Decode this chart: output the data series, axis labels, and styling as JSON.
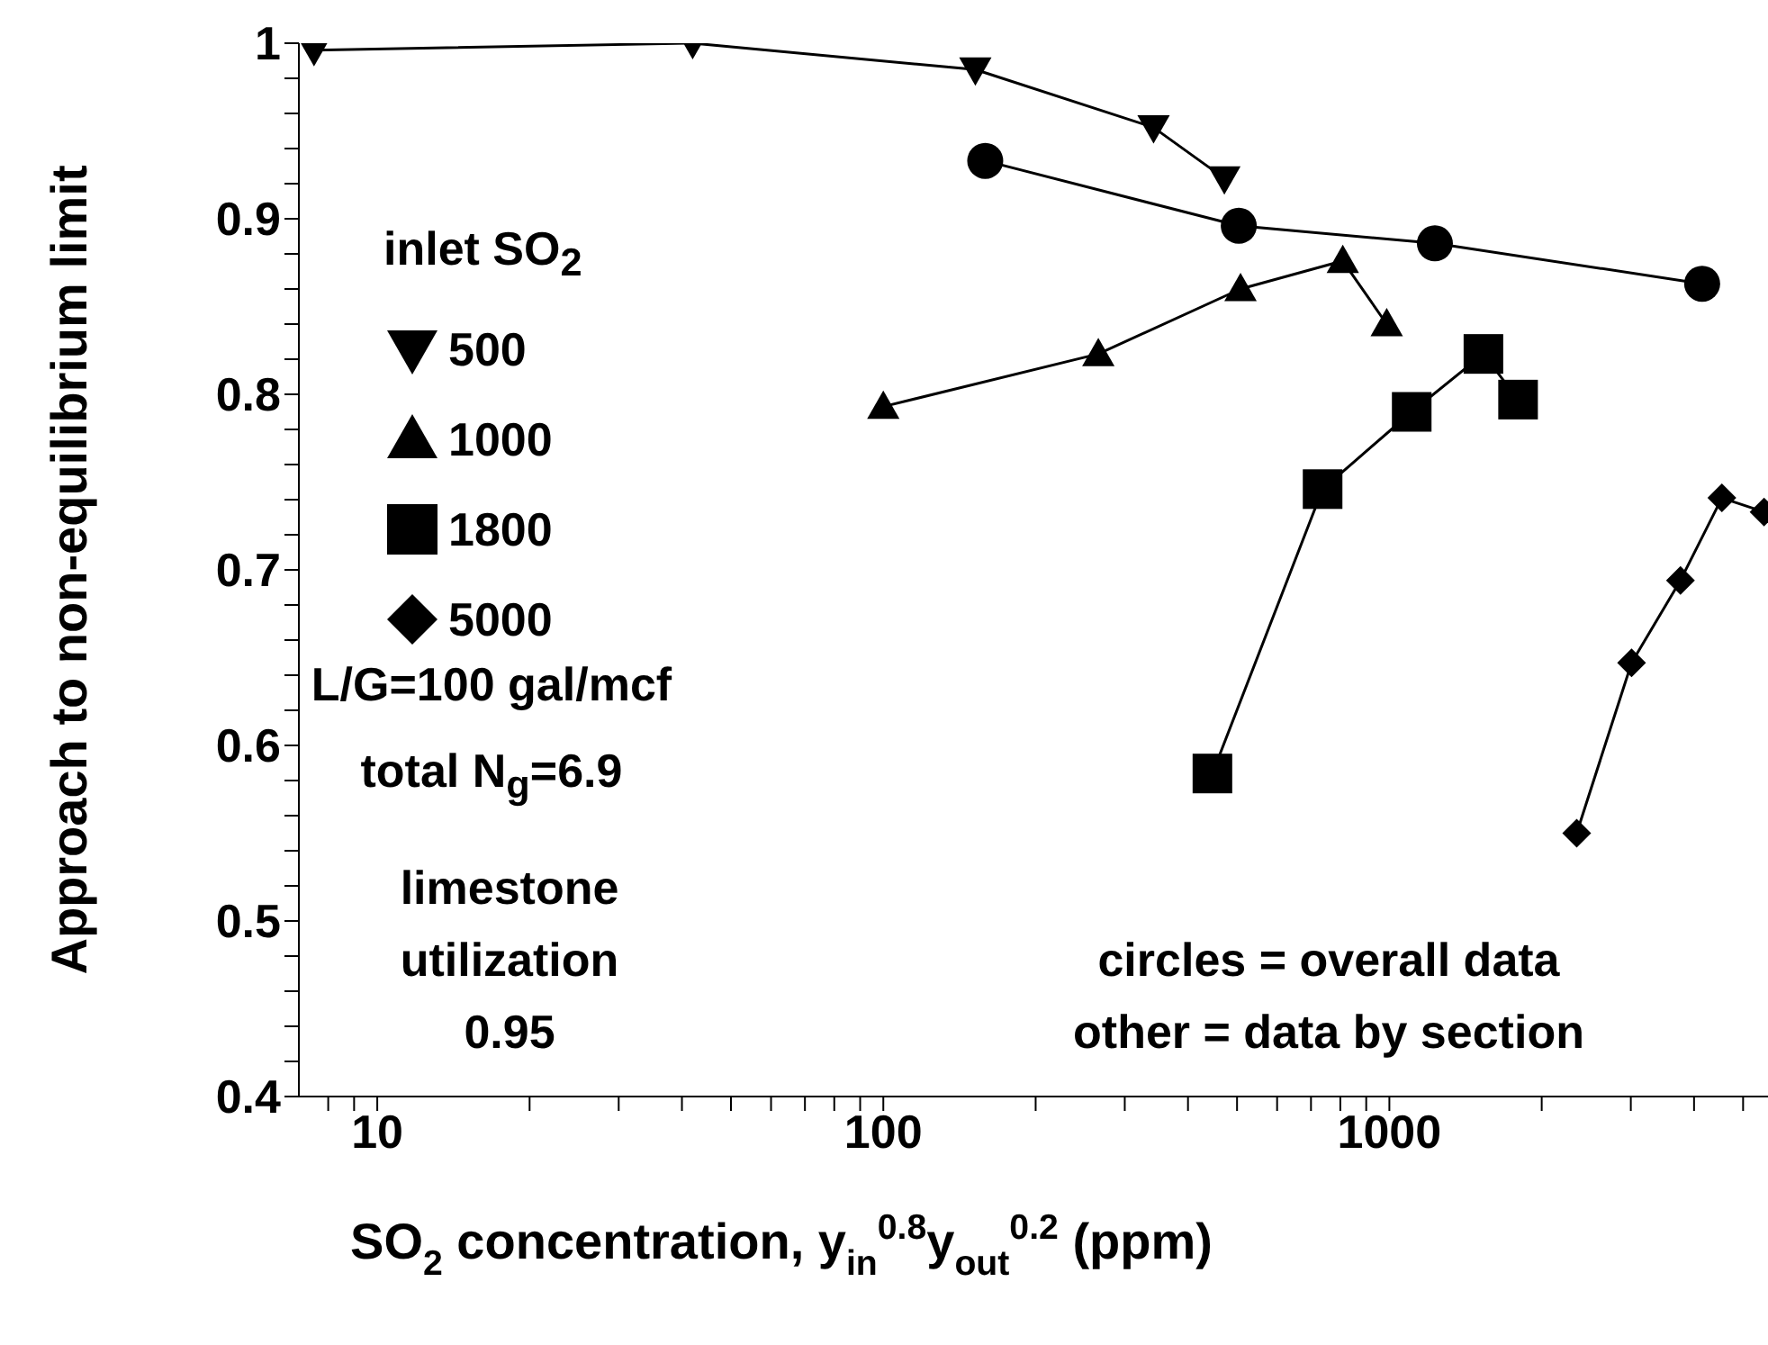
{
  "chart_data": {
    "type": "line",
    "xlabel": "SO$_{2}$ concentration, y$_{in}$$^{0.8}$y$_{out}$$^{0.2}$ (ppm)",
    "ylabel": "Approach to non-equilibrium limit",
    "legend_title": "inlet SO$_{2}$",
    "legend": "top left",
    "log": "x",
    "line_style": "solid",
    "xlim": [
      7,
      5600
    ],
    "ylim": [
      0.4,
      1
    ],
    "xticks": [
      {
        "value": 8,
        "label": null
      },
      {
        "value": 9,
        "label": null
      },
      10,
      {
        "value": 20,
        "label": null
      },
      {
        "value": 30,
        "label": null
      },
      {
        "value": 40,
        "label": null
      },
      {
        "value": 50,
        "label": null
      },
      {
        "value": 60,
        "label": null
      },
      {
        "value": 70,
        "label": null
      },
      {
        "value": 80,
        "label": null
      },
      {
        "value": 90,
        "label": null
      },
      100,
      {
        "value": 200,
        "label": null
      },
      {
        "value": 300,
        "label": null
      },
      {
        "value": 400,
        "label": null
      },
      {
        "value": 500,
        "label": null
      },
      {
        "value": 600,
        "label": null
      },
      {
        "value": 700,
        "label": null
      },
      {
        "value": 800,
        "label": null
      },
      {
        "value": 900,
        "label": null
      },
      1000,
      {
        "value": 2000,
        "label": null
      },
      {
        "value": 3000,
        "label": null
      },
      {
        "value": 4000,
        "label": null
      },
      {
        "value": 5000,
        "label": null
      }
    ],
    "yticks": [
      0.4,
      {
        "value": 0.42,
        "label": null
      },
      {
        "value": 0.44,
        "label": null
      },
      {
        "value": 0.46,
        "label": null
      },
      {
        "value": 0.48,
        "label": null
      },
      0.5,
      {
        "value": 0.52,
        "label": null
      },
      {
        "value": 0.54,
        "label": null
      },
      {
        "value": 0.56,
        "label": null
      },
      {
        "value": 0.58,
        "label": null
      },
      0.6,
      {
        "value": 0.62,
        "label": null
      },
      {
        "value": 0.64,
        "label": null
      },
      {
        "value": 0.66,
        "label": null
      },
      {
        "value": 0.68,
        "label": null
      },
      0.7,
      {
        "value": 0.72,
        "label": null
      },
      {
        "value": 0.74,
        "label": null
      },
      {
        "value": 0.76,
        "label": null
      },
      {
        "value": 0.78,
        "label": null
      },
      0.8,
      {
        "value": 0.82,
        "label": null
      },
      {
        "value": 0.84,
        "label": null
      },
      {
        "value": 0.86,
        "label": null
      },
      {
        "value": 0.88,
        "label": null
      },
      0.9,
      {
        "value": 0.92,
        "label": null
      },
      {
        "value": 0.94,
        "label": null
      },
      {
        "value": 0.96,
        "label": null
      },
      {
        "value": 0.98,
        "label": null
      },
      1
    ],
    "series": [
      {
        "name": "500",
        "color": "#000000",
        "marker": "triangle-down",
        "x": [
          7.5,
          42,
          152,
          342,
          472
        ],
        "values": [
          0.996,
          1.0,
          0.985,
          0.952,
          0.923
        ]
      },
      {
        "name": "1000",
        "color": "#000000",
        "marker": "triangle",
        "x": [
          100,
          266,
          508,
          809,
          988
        ],
        "values": [
          0.793,
          0.823,
          0.86,
          0.876,
          0.84
        ]
      },
      {
        "name": "1800",
        "color": "#000000",
        "marker": "square",
        "x": [
          447,
          738,
          1107,
          1534,
          1796
        ],
        "values": [
          0.584,
          0.746,
          0.79,
          0.823,
          0.797
        ]
      },
      {
        "name": "5000",
        "color": "#000000",
        "marker": "diamond",
        "x": [
          2345,
          3010,
          3760,
          4540,
          5500
        ],
        "values": [
          0.55,
          0.647,
          0.694,
          0.741,
          0.733
        ]
      },
      {
        "color": "#000000",
        "marker": "circle",
        "x": [
          159,
          504,
          1230,
          4150
        ],
        "values": [
          0.933,
          0.896,
          0.886,
          0.863
        ]
      }
    ],
    "annotations": [
      "L/G=100 gal/mcf",
      "total N$_{g}$=6.9",
      "limestone\nutilization\n0.95",
      "circles = overall data\nother = data by section"
    ]
  }
}
